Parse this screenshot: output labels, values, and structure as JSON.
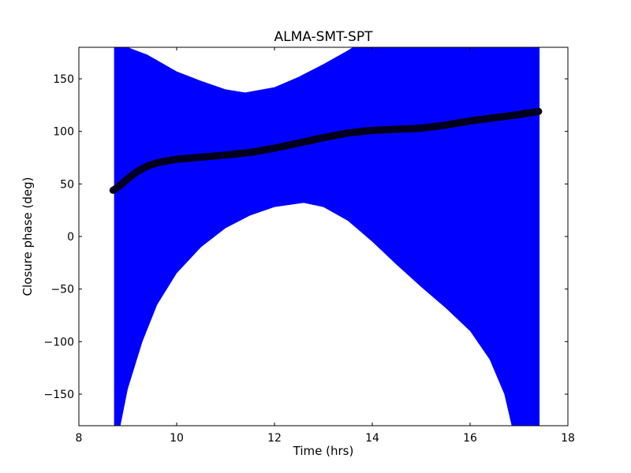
{
  "chart_data": {
    "type": "scatter",
    "title": "ALMA-SMT-SPT",
    "xlabel": "Time (hrs)",
    "ylabel": "Closure phase (deg)",
    "xlim": [
      8,
      18
    ],
    "ylim": [
      -180,
      180
    ],
    "xticks": [
      8,
      10,
      12,
      14,
      16,
      18
    ],
    "yticks": [
      -150,
      -100,
      -50,
      0,
      50,
      100,
      150
    ],
    "xtick_labels": [
      "8",
      "10",
      "12",
      "14",
      "16",
      "18"
    ],
    "ytick_labels": [
      "−150",
      "−100",
      "−50",
      "0",
      "50",
      "100",
      "150"
    ],
    "grid": false,
    "legend": "none",
    "series": [
      {
        "color": "#000033",
        "marker": "circle",
        "points": [
          [
            8.7,
            44
          ],
          [
            8.8,
            47
          ],
          [
            9.0,
            55
          ],
          [
            9.2,
            62
          ],
          [
            9.4,
            67
          ],
          [
            9.6,
            70
          ],
          [
            9.8,
            72
          ],
          [
            10.0,
            73.5
          ],
          [
            10.5,
            75.5
          ],
          [
            11.0,
            77.5
          ],
          [
            11.5,
            80
          ],
          [
            12.0,
            84
          ],
          [
            12.5,
            89
          ],
          [
            13.0,
            94
          ],
          [
            13.5,
            98.5
          ],
          [
            14.0,
            101
          ],
          [
            14.5,
            102
          ],
          [
            15.0,
            103
          ],
          [
            15.5,
            106
          ],
          [
            16.0,
            110
          ],
          [
            16.5,
            113
          ],
          [
            17.0,
            116
          ],
          [
            17.4,
            119
          ]
        ]
      }
    ],
    "error_band": {
      "color": "#0000ff",
      "x_range": [
        8.72,
        17.42
      ],
      "upper": [
        [
          9.0,
          180
        ],
        [
          9.4,
          173
        ],
        [
          10.0,
          157
        ],
        [
          10.5,
          148
        ],
        [
          11.0,
          140
        ],
        [
          11.4,
          137
        ],
        [
          12.0,
          142
        ],
        [
          12.5,
          152
        ],
        [
          13.0,
          164
        ],
        [
          13.5,
          177
        ],
        [
          13.6,
          180
        ]
      ],
      "lower": [
        [
          8.85,
          -180
        ],
        [
          9.0,
          -145
        ],
        [
          9.3,
          -100
        ],
        [
          9.6,
          -65
        ],
        [
          10.0,
          -35
        ],
        [
          10.5,
          -10
        ],
        [
          11.0,
          8
        ],
        [
          11.5,
          20
        ],
        [
          12.0,
          28
        ],
        [
          12.6,
          32
        ],
        [
          13.0,
          28
        ],
        [
          13.5,
          15
        ],
        [
          14.0,
          -5
        ],
        [
          14.5,
          -27
        ],
        [
          15.0,
          -48
        ],
        [
          15.5,
          -68
        ],
        [
          16.0,
          -90
        ],
        [
          16.4,
          -117
        ],
        [
          16.7,
          -150
        ],
        [
          16.85,
          -180
        ]
      ]
    }
  }
}
